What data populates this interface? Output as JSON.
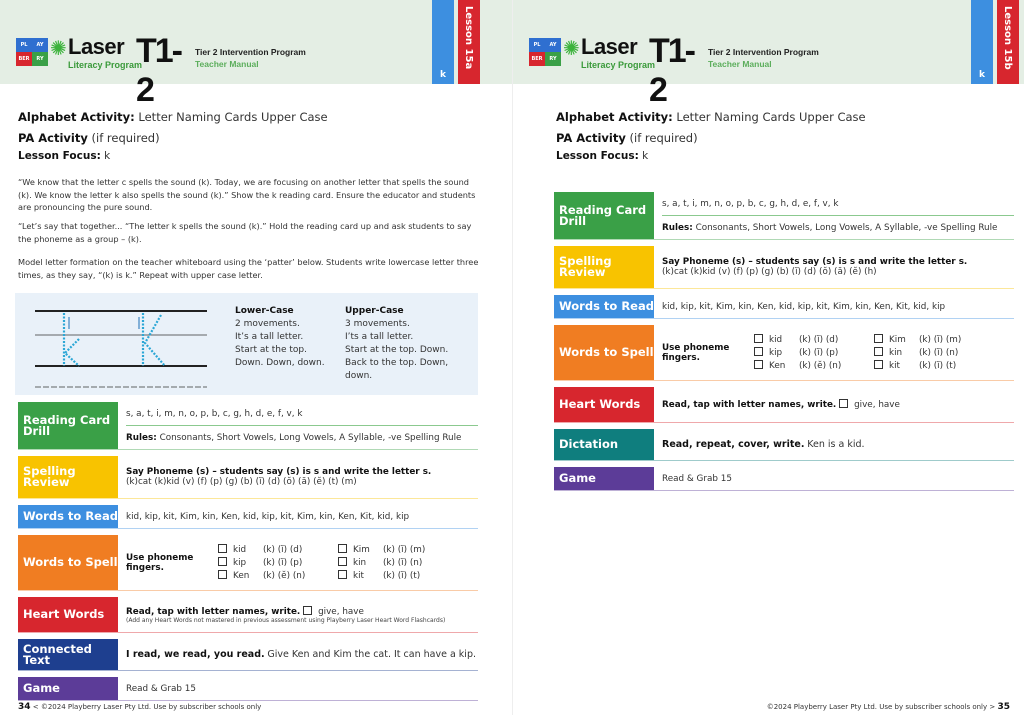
{
  "header": {
    "brand": "Laser",
    "brand_sub": "Literacy Program",
    "level": "T1-2",
    "program": "Tier 2 Intervention Program",
    "manual": "Teacher Manual",
    "puzzle": [
      "PL",
      "AY",
      "BER",
      "RY"
    ]
  },
  "colors": {
    "header_bg": "#e4eee4",
    "tab_blue": "#3d8fe0",
    "tab_red": "#d7262e",
    "reading": "#3aa047",
    "spelling": "#f8c300",
    "read": "#3d8fe0",
    "spell": "#f07d22",
    "heart": "#d7262e",
    "connected": "#1e3f8f",
    "dictation": "#0f7e7e",
    "game": "#5c3c98"
  },
  "left": {
    "tab_letter": "k",
    "tab_lesson": "Lesson 15a",
    "alphabet_label": "Alphabet Activity:",
    "alphabet": "Letter Naming Cards Upper Case",
    "pa_label": "PA Activity",
    "pa": "(if required)",
    "focus_label": "Lesson Focus:",
    "focus": "k",
    "paragraphs": [
      "“We know that the letter c spells the sound (k). Today, we are focusing on another letter that spells the sound (k). We know the letter k also spells the sound (k).” Show the k reading card. Ensure the educator and students are pronouncing the pure sound.",
      "“Let’s say that together... “The letter k spells the sound (k).”  Hold the reading card up and ask students to say the phoneme as a group – (k).",
      "Model letter formation on the teacher whiteboard using the ‘patter’ below.  Students write lowercase letter three times, as they say, “(k) is k.”  Repeat with upper case letter."
    ],
    "formation": {
      "lower_title": "Lower-Case",
      "lower": [
        "2 movements.",
        "It’s a tall letter.",
        "Start at the top.",
        "Down. Down, down."
      ],
      "upper_title": "Upper-Case",
      "upper": [
        "3 movements.",
        "I’ts a tall letter.",
        "Start at the top. Down.",
        "Back to the top. Down,",
        "down."
      ]
    },
    "rows": [
      {
        "type": "rcd",
        "label": "Reading Card Drill",
        "color": "#3aa047",
        "letters": "s, a, t, i, m, n, o, p, b, c, g, h, d, e, f, v, k",
        "rules_label": "Rules:",
        "rules": "Consonants, Short Vowels, Long Vowels, A Syllable, -ve Spelling Rule"
      },
      {
        "type": "sr",
        "label": "Spelling Review",
        "color": "#f8c300",
        "instruction": "Say Phoneme (s) – students say (s) is s and write the letter s.",
        "sounds": "(k)cat (k)kid (v) (f) (p) (g) (b) (ĭ) (d) (ŏ) (ă) (ĕ) (t) (m)"
      },
      {
        "type": "text",
        "label": "Words to Read",
        "color": "#3d8fe0",
        "text": "kid, kip, kit, Kim, kin, Ken, kid, kip, kit, Kim, kin, Ken, Kit, kid, kip"
      },
      {
        "type": "wts",
        "label": "Words to Spell",
        "color": "#f07d22",
        "instruction": "Use phoneme fingers.",
        "words": [
          {
            "word": "kid",
            "phonemes": "(k) (ĭ) (d)"
          },
          {
            "word": "Kim",
            "phonemes": "(k) (ĭ) (m)"
          },
          {
            "word": "kip",
            "phonemes": "(k) (ĭ) (p)"
          },
          {
            "word": "kin",
            "phonemes": "(k) (ĭ) (n)"
          },
          {
            "word": "Ken",
            "phonemes": "(k) (ĕ) (n)"
          },
          {
            "word": "kit",
            "phonemes": "(k) (ĭ) (t)"
          }
        ]
      },
      {
        "type": "hw",
        "label": "Heart Words",
        "color": "#d7262e",
        "instruction": "Read, tap with letter names, write.",
        "words": "give, have",
        "note": "(Add any Heart Words not mastered in previous assessment using Playberry Laser Heart Word Flashcards)"
      },
      {
        "type": "bt",
        "label": "Connected Text",
        "color": "#1e3f8f",
        "instruction": "I read, we read, you read.",
        "text": "Give Ken and Kim the cat. It can have a kip."
      },
      {
        "type": "text",
        "label": "Game",
        "color": "#5c3c98",
        "text": "Read & Grab 15"
      }
    ],
    "page_number": "34",
    "footer": "< ©2024 Playberry Laser Pty Ltd. Use by subscriber schools only"
  },
  "right": {
    "tab_letter": "k",
    "tab_lesson": "Lesson 15b",
    "alphabet_label": "Alphabet Activity:",
    "alphabet": "Letter Naming Cards Upper Case",
    "pa_label": "PA Activity",
    "pa": "(if required)",
    "focus_label": "Lesson Focus:",
    "focus": "k",
    "rows": [
      {
        "type": "rcd",
        "label": "Reading Card Drill",
        "color": "#3aa047",
        "letters": "s, a, t, i, m, n, o, p, b, c, g, h, d, e, f, v, k",
        "rules_label": "Rules:",
        "rules": "Consonants, Short Vowels, Long Vowels, A Syllable, -ve Spelling Rule"
      },
      {
        "type": "sr",
        "label": "Spelling Review",
        "color": "#f8c300",
        "instruction": "Say Phoneme (s) – students say (s) is s and write the letter s.",
        "sounds": "(k)cat (k)kid (v) (f) (p) (g) (b) (ĭ) (d) (ŏ) (ă) (ĕ) (h)"
      },
      {
        "type": "text",
        "label": "Words to Read",
        "color": "#3d8fe0",
        "text": "kid, kip, kit, Kim, kin, Ken, kid, kip, kit, Kim, kin, Ken, Kit, kid, kip"
      },
      {
        "type": "wts",
        "label": "Words to Spell",
        "color": "#f07d22",
        "instruction": "Use phoneme fingers.",
        "words": [
          {
            "word": "kid",
            "phonemes": "(k) (ĭ) (d)"
          },
          {
            "word": "Kim",
            "phonemes": "(k) (ĭ) (m)"
          },
          {
            "word": "kip",
            "phonemes": "(k) (ĭ) (p)"
          },
          {
            "word": "kin",
            "phonemes": "(k) (ĭ) (n)"
          },
          {
            "word": "Ken",
            "phonemes": "(k) (ĕ) (n)"
          },
          {
            "word": "kit",
            "phonemes": "(k) (ĭ) (t)"
          }
        ]
      },
      {
        "type": "hw",
        "label": "Heart Words",
        "color": "#d7262e",
        "instruction": "Read, tap with letter names, write.",
        "words": "give, have"
      },
      {
        "type": "bt",
        "label": "Dictation",
        "color": "#0f7e7e",
        "instruction": "Read, repeat, cover, write.",
        "text": "Ken is a kid."
      },
      {
        "type": "text",
        "label": "Game",
        "color": "#5c3c98",
        "text": "Read & Grab 15"
      }
    ],
    "page_number": "35",
    "footer": "©2024 Playberry Laser Pty Ltd. Use by subscriber schools only >"
  }
}
